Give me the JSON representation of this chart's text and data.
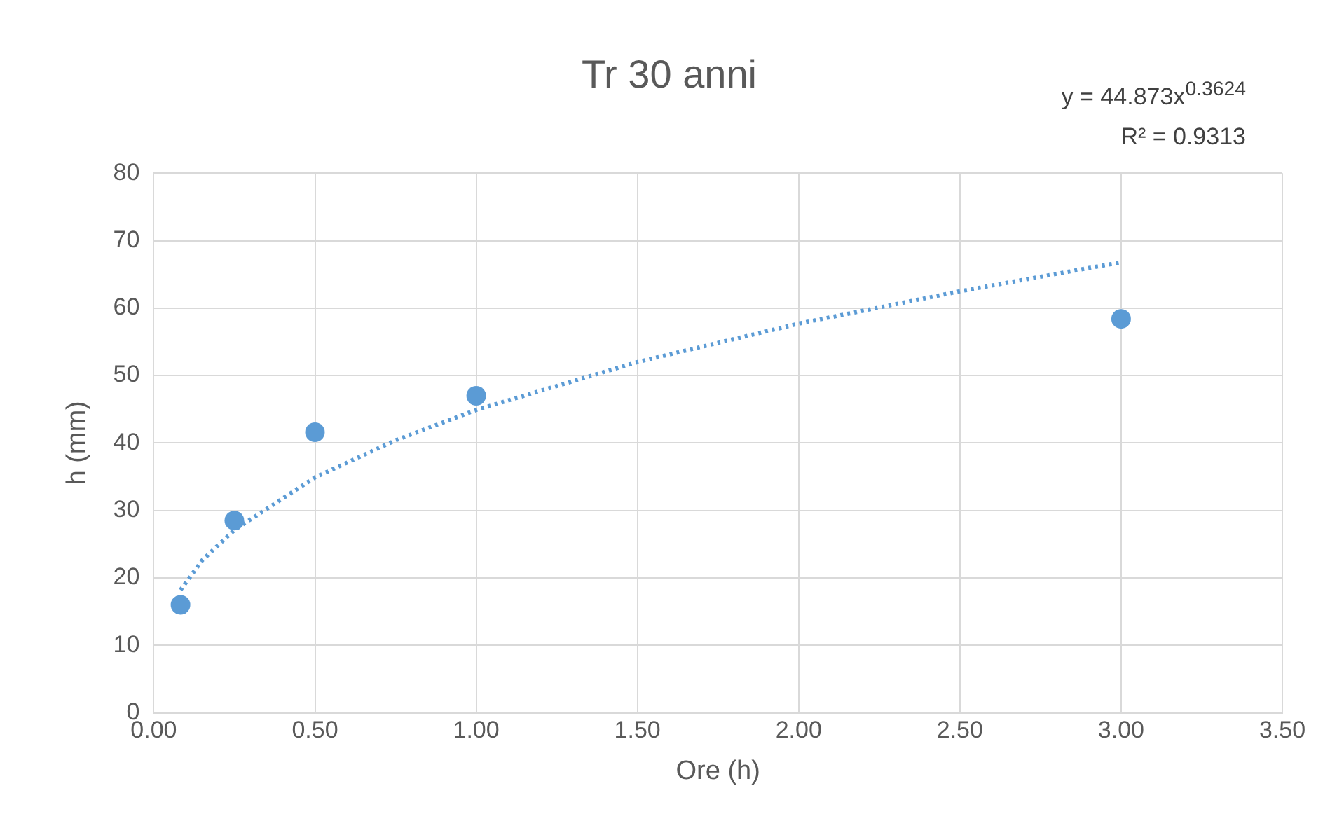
{
  "chart_data": {
    "type": "scatter",
    "title": "Tr 30 anni",
    "xlabel": "Ore (h)",
    "ylabel": "h (mm)",
    "xlim": [
      0,
      3.5
    ],
    "xticks": [
      {
        "value": 0,
        "label": "0.00"
      },
      {
        "value": 0.5,
        "label": "0.50"
      },
      {
        "value": 1,
        "label": "1.00"
      },
      {
        "value": 1.5,
        "label": "1.50"
      },
      {
        "value": 2,
        "label": "2.00"
      },
      {
        "value": 2.5,
        "label": "2.50"
      },
      {
        "value": 3,
        "label": "3.00"
      },
      {
        "value": 3.5,
        "label": "3.50"
      }
    ],
    "ylim": [
      0,
      80
    ],
    "yticks": [
      0,
      10,
      20,
      30,
      40,
      50,
      60,
      70,
      80
    ],
    "grid": true,
    "legend": false,
    "series": [
      {
        "type": "scatter",
        "color": "#5b9bd5",
        "marker": "circle",
        "x": [
          0.083,
          0.25,
          0.5,
          1,
          3
        ],
        "values": [
          16.0,
          28.5,
          41.6,
          47.0,
          58.4
        ]
      },
      {
        "type": "line",
        "color": "#5b9bd5",
        "marker": "none",
        "line_style": "dotted",
        "x": [
          0.083,
          0.15,
          0.25,
          0.5,
          0.75,
          1,
          1.5,
          2,
          2.5,
          3
        ],
        "values": [
          18.2,
          22.6,
          27.1,
          34.9,
          40.4,
          44.9,
          52.0,
          57.7,
          62.5,
          66.8
        ]
      }
    ],
    "annotations": [
      "y = 44.873x$^{0.3624}$",
      "R² = 0.9313"
    ]
  }
}
